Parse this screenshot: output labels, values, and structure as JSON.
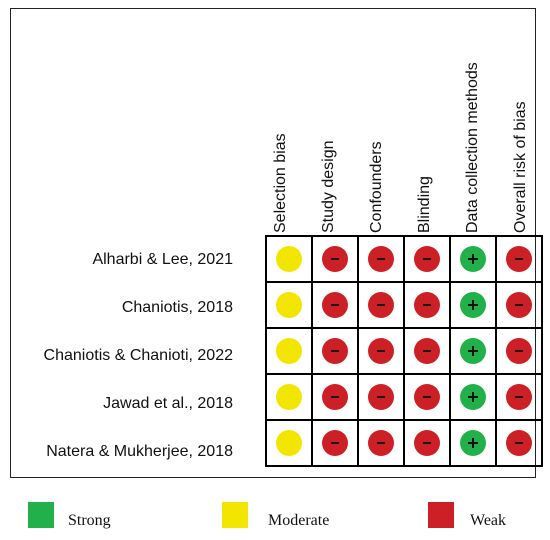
{
  "columns": [
    "Selection bias",
    "Study design",
    "Confounders",
    "Blinding",
    "Data collection methods",
    "Overall risk of bias"
  ],
  "studies": [
    {
      "label": "Alharbi & Lee, 2021",
      "ratings": [
        "moderate",
        "weak",
        "weak",
        "weak",
        "strong",
        "weak"
      ]
    },
    {
      "label": "Chaniotis, 2018",
      "ratings": [
        "moderate",
        "weak",
        "weak",
        "weak",
        "strong",
        "weak"
      ]
    },
    {
      "label": "Chaniotis & Chanioti, 2022",
      "ratings": [
        "moderate",
        "weak",
        "weak",
        "weak",
        "strong",
        "weak"
      ]
    },
    {
      "label": "Jawad et al., 2018",
      "ratings": [
        "moderate",
        "weak",
        "weak",
        "weak",
        "strong",
        "weak"
      ]
    },
    {
      "label": "Natera & Mukherjee, 2018",
      "ratings": [
        "moderate",
        "weak",
        "weak",
        "weak",
        "strong",
        "weak"
      ]
    }
  ],
  "legend": {
    "strong": {
      "label": "Strong",
      "color": "#22b04a"
    },
    "moderate": {
      "label": "Moderate",
      "color": "#f2e600"
    },
    "weak": {
      "label": "Weak",
      "color": "#cc2026"
    }
  },
  "symbols": {
    "strong": "+",
    "moderate": "",
    "weak": "−"
  }
}
